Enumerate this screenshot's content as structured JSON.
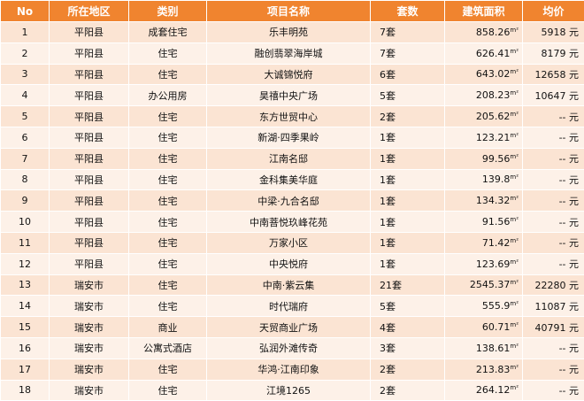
{
  "table": {
    "headers": [
      "No",
      "所在地区",
      "类别",
      "项目名称",
      "套数",
      "建筑面积",
      "均价"
    ],
    "area_unit": "m²",
    "rows": [
      {
        "no": "1",
        "region": "平阳县",
        "type": "成套住宅",
        "name": "乐丰明苑",
        "sets": "7套",
        "area": "858.26",
        "price": "5918 元"
      },
      {
        "no": "2",
        "region": "平阳县",
        "type": "住宅",
        "name": "融创翡翠海岸城",
        "sets": "7套",
        "area": "626.41",
        "price": "8179 元"
      },
      {
        "no": "3",
        "region": "平阳县",
        "type": "住宅",
        "name": "大诚锦悦府",
        "sets": "6套",
        "area": "643.02",
        "price": "12658 元"
      },
      {
        "no": "4",
        "region": "平阳县",
        "type": "办公用房",
        "name": "昊禧中央广场",
        "sets": "5套",
        "area": "208.23",
        "price": "10647 元"
      },
      {
        "no": "5",
        "region": "平阳县",
        "type": "住宅",
        "name": "东方世贸中心",
        "sets": "2套",
        "area": "205.62",
        "price": "-- 元"
      },
      {
        "no": "6",
        "region": "平阳县",
        "type": "住宅",
        "name": "新湖·四季果岭",
        "sets": "1套",
        "area": "123.21",
        "price": "-- 元"
      },
      {
        "no": "7",
        "region": "平阳县",
        "type": "住宅",
        "name": "江南名邸",
        "sets": "1套",
        "area": "99.56",
        "price": "-- 元"
      },
      {
        "no": "8",
        "region": "平阳县",
        "type": "住宅",
        "name": "金科集美华庭",
        "sets": "1套",
        "area": "139.8",
        "price": "-- 元"
      },
      {
        "no": "9",
        "region": "平阳县",
        "type": "住宅",
        "name": "中梁·九合名邸",
        "sets": "1套",
        "area": "134.32",
        "price": "-- 元"
      },
      {
        "no": "10",
        "region": "平阳县",
        "type": "住宅",
        "name": "中南菩悦玖峰花苑",
        "sets": "1套",
        "area": "91.56",
        "price": "-- 元"
      },
      {
        "no": "11",
        "region": "平阳县",
        "type": "住宅",
        "name": "万家小区",
        "sets": "1套",
        "area": "71.42",
        "price": "-- 元"
      },
      {
        "no": "12",
        "region": "平阳县",
        "type": "住宅",
        "name": "中央悦府",
        "sets": "1套",
        "area": "123.69",
        "price": "-- 元"
      },
      {
        "no": "13",
        "region": "瑞安市",
        "type": "住宅",
        "name": "中南·紫云集",
        "sets": "21套",
        "area": "2545.37",
        "price": "22280 元"
      },
      {
        "no": "14",
        "region": "瑞安市",
        "type": "住宅",
        "name": "时代瑞府",
        "sets": "5套",
        "area": "555.9",
        "price": "11087 元"
      },
      {
        "no": "15",
        "region": "瑞安市",
        "type": "商业",
        "name": "天贸商业广场",
        "sets": "4套",
        "area": "60.71",
        "price": "40791 元"
      },
      {
        "no": "16",
        "region": "瑞安市",
        "type": "公寓式酒店",
        "name": "弘润外滩传奇",
        "sets": "3套",
        "area": "138.61",
        "price": "-- 元"
      },
      {
        "no": "17",
        "region": "瑞安市",
        "type": "住宅",
        "name": "华鸿·江南印象",
        "sets": "2套",
        "area": "213.83",
        "price": "-- 元"
      },
      {
        "no": "18",
        "region": "瑞安市",
        "type": "住宅",
        "name": "江境1265",
        "sets": "2套",
        "area": "264.12",
        "price": "-- 元"
      }
    ]
  },
  "colors": {
    "header_bg": "#f0842f",
    "row_odd": "#fbe4d3",
    "row_even": "#fdf1e8"
  }
}
